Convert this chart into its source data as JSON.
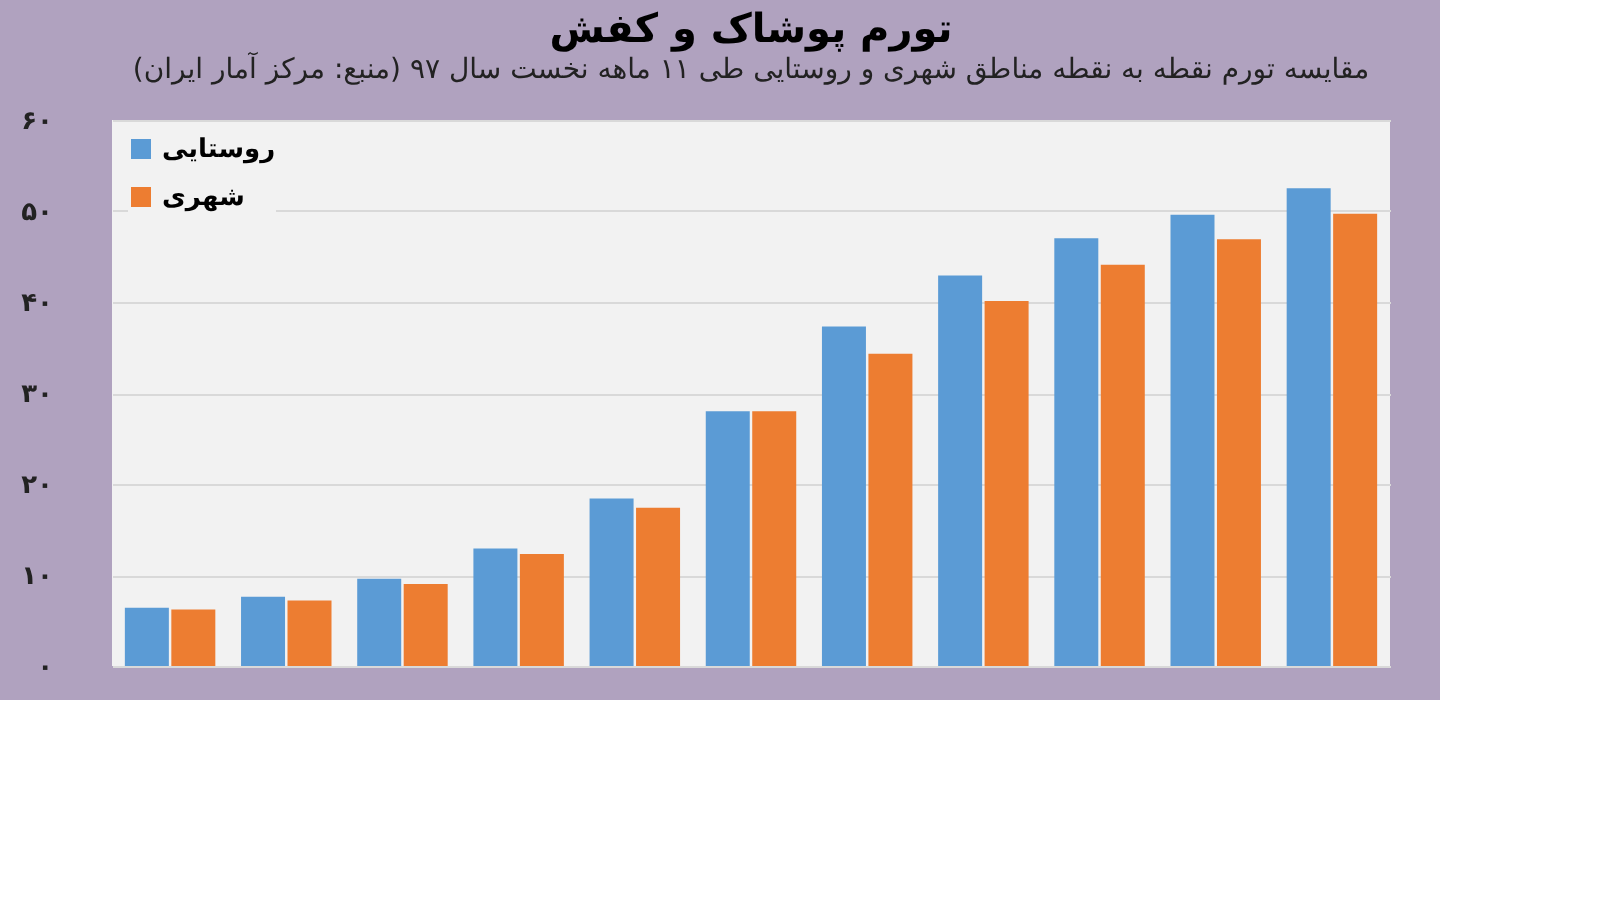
{
  "chart_data": {
    "type": "bar",
    "title": "تورم پوشاک و کفش",
    "subtitle": "مقایسه تورم نقطه به نقطه مناطق شهری و روستایی طی ۱۱ ماهه نخست سال ۹۷ (منبع: مرکز آمار ایران)",
    "categories": [
      null,
      null,
      null,
      null,
      null,
      null,
      null,
      null,
      null,
      null,
      null
    ],
    "series": [
      {
        "name": "روستایی",
        "color": "#5b9bd5",
        "values": [
          6.4,
          7.6,
          9.6,
          12.9,
          18.4,
          28.0,
          37.3,
          42.9,
          47.0,
          49.6,
          52.5
        ]
      },
      {
        "name": "شهری",
        "color": "#ed7d31",
        "values": [
          6.2,
          7.2,
          9.0,
          12.3,
          17.4,
          28.0,
          34.3,
          40.1,
          44.1,
          46.9,
          49.7
        ]
      }
    ],
    "ylim": [
      0,
      60
    ],
    "yticks": [
      {
        "value": 0,
        "label": "۰"
      },
      {
        "value": 10,
        "label": "۱۰"
      },
      {
        "value": 20,
        "label": "۲۰"
      },
      {
        "value": 30,
        "label": "۳۰"
      },
      {
        "value": 40,
        "label": "۴۰"
      },
      {
        "value": 50,
        "label": "۵۰"
      },
      {
        "value": 60,
        "label": "۶۰"
      }
    ],
    "grid": "y",
    "legend": "top left",
    "tick_labels": "y"
  }
}
